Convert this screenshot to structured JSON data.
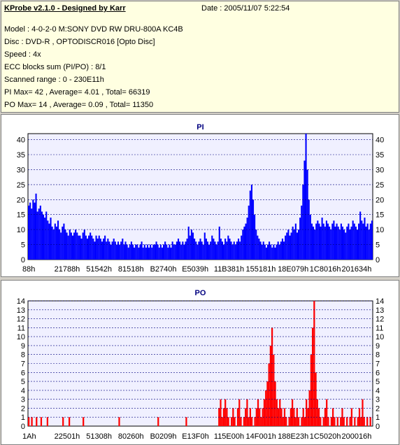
{
  "header": {
    "title": "KProbe v2.1.0 - Designed by Karr",
    "date": "Date : 2005/11/07 5:22:54",
    "lines": [
      "Model : 4-0-2-0 M:SONY    DVD RW DRU-800A  KC4B",
      "Disc : DVD-R , OPTODISCR016 [Opto Disc]",
      "Speed : 4x",
      "ECC blocks sum (PI/PO) : 8/1",
      "Scanned range : 0 - 230E11h",
      "PI Max= 42 , Average= 4.01 , Total= 66319",
      "PO Max= 14 , Average= 0.09 , Total= 11350"
    ]
  },
  "colors": {
    "pi_bar": "#0000ff",
    "po_bar": "#ff0000",
    "plot_bg": "#f0f0ff",
    "grid": "#000080",
    "title": "#000080"
  },
  "chart_data": [
    {
      "type": "bar",
      "title": "PI",
      "ylim": [
        0,
        42
      ],
      "yticks": [
        0,
        5,
        10,
        15,
        20,
        25,
        30,
        35,
        40
      ],
      "xticks": [
        "88h",
        "21788h",
        "51542h",
        "81518h",
        "B2740h",
        "E5039h",
        "11B381h",
        "155181h",
        "18E079h",
        "1C8016h",
        "201634h"
      ],
      "max": 42,
      "average": 4.01,
      "series": [
        {
          "values": [
            18,
            19,
            17,
            20,
            19,
            22,
            16,
            17,
            18,
            16,
            15,
            14,
            16,
            13,
            12,
            14,
            11,
            10,
            12,
            11,
            13,
            10,
            9,
            11,
            12,
            10,
            9,
            8,
            10,
            9,
            8,
            9,
            10,
            9,
            8,
            8,
            7,
            9,
            10,
            8,
            7,
            8,
            9,
            8,
            7,
            6,
            8,
            7,
            8,
            7,
            6,
            7,
            8,
            6,
            7,
            6,
            5,
            6,
            7,
            6,
            5,
            6,
            5,
            6,
            7,
            5,
            6,
            5,
            4,
            5,
            6,
            5,
            4,
            5,
            5,
            4,
            5,
            6,
            4,
            5,
            4,
            5,
            4,
            5,
            4,
            5,
            5,
            6,
            5,
            4,
            5,
            4,
            5,
            6,
            5,
            4,
            5,
            4,
            6,
            5,
            5,
            6,
            7,
            6,
            5,
            6,
            5,
            6,
            7,
            11,
            8,
            10,
            9,
            7,
            6,
            5,
            6,
            7,
            6,
            5,
            9,
            7,
            6,
            5,
            6,
            8,
            7,
            6,
            5,
            6,
            11,
            7,
            6,
            5,
            7,
            6,
            8,
            7,
            6,
            5,
            6,
            5,
            6,
            7,
            6,
            8,
            10,
            11,
            12,
            14,
            18,
            23,
            25,
            20,
            15,
            10,
            8,
            7,
            6,
            5,
            6,
            5,
            4,
            5,
            6,
            5,
            4,
            5,
            4,
            5,
            6,
            5,
            6,
            7,
            6,
            8,
            9,
            10,
            8,
            9,
            11,
            10,
            12,
            9,
            10,
            14,
            18,
            25,
            33,
            42,
            30,
            20,
            15,
            12,
            11,
            10,
            12,
            13,
            12,
            11,
            14,
            12,
            11,
            13,
            12,
            11,
            10,
            12,
            13,
            11,
            12,
            11,
            10,
            12,
            11,
            10,
            9,
            11,
            12,
            10,
            11,
            13,
            12,
            11,
            10,
            12,
            16,
            13,
            12,
            14,
            11,
            12,
            10,
            12,
            13
          ]
        }
      ]
    },
    {
      "type": "bar",
      "title": "PO",
      "ylim": [
        0,
        14
      ],
      "yticks": [
        0,
        1,
        2,
        3,
        4,
        5,
        6,
        7,
        8,
        9,
        10,
        11,
        12,
        13,
        14
      ],
      "xticks": [
        "1Ah",
        "22501h",
        "51308h",
        "80260h",
        "B0209h",
        "E13F0h",
        "115E00h",
        "14F001h",
        "188E23h",
        "1C5020h",
        "200016h"
      ],
      "max": 14,
      "average": 0.09,
      "series": [
        {
          "values": [
            1,
            0,
            1,
            0,
            0,
            1,
            0,
            0,
            1,
            0,
            0,
            0,
            1,
            0,
            0,
            0,
            0,
            0,
            0,
            0,
            0,
            0,
            1,
            0,
            0,
            0,
            1,
            0,
            0,
            0,
            0,
            0,
            0,
            0,
            0,
            1,
            0,
            0,
            0,
            0,
            0,
            0,
            0,
            0,
            0,
            0,
            0,
            0,
            0,
            0,
            0,
            0,
            0,
            0,
            0,
            0,
            0,
            0,
            1,
            0,
            0,
            0,
            0,
            0,
            0,
            0,
            0,
            0,
            0,
            0,
            0,
            0,
            0,
            0,
            0,
            0,
            0,
            0,
            0,
            0,
            0,
            0,
            0,
            1,
            0,
            0,
            0,
            0,
            0,
            0,
            0,
            0,
            0,
            0,
            0,
            0,
            0,
            0,
            0,
            0,
            0,
            1,
            0,
            0,
            0,
            0,
            0,
            0,
            0,
            0,
            0,
            0,
            0,
            0,
            0,
            0,
            0,
            0,
            0,
            0,
            0,
            0,
            2,
            3,
            1,
            2,
            3,
            2,
            1,
            0,
            1,
            2,
            1,
            0,
            2,
            3,
            1,
            0,
            1,
            2,
            3,
            1,
            2,
            1,
            0,
            1,
            2,
            3,
            2,
            1,
            2,
            3,
            4,
            5,
            7,
            9,
            11,
            8,
            5,
            3,
            2,
            3,
            2,
            1,
            2,
            1,
            0,
            1,
            2,
            3,
            2,
            1,
            2,
            1,
            0,
            1,
            2,
            1,
            3,
            2,
            4,
            8,
            11,
            14,
            6,
            3,
            2,
            1,
            0,
            1,
            2,
            3,
            1,
            0,
            1,
            2,
            1,
            0,
            1,
            0,
            1,
            2,
            1,
            0,
            1,
            0,
            1,
            2,
            0,
            1,
            0,
            1,
            2,
            1,
            3,
            1,
            0,
            1,
            0,
            1,
            0
          ]
        }
      ]
    }
  ]
}
